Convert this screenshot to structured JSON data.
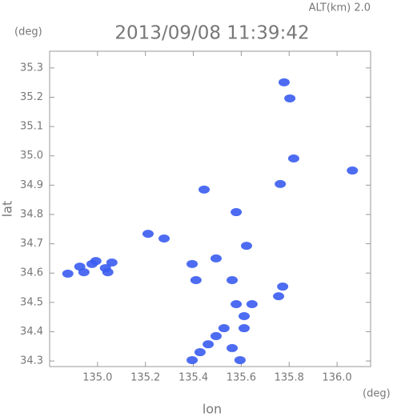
{
  "chart_data": {
    "type": "scatter",
    "title": "2013/09/08 11:39:42",
    "altitude_label": "ALT(km) 2.0",
    "x_label": "lon",
    "y_label": "lat",
    "x_unit": "(deg)",
    "y_unit": "(deg)",
    "xlim": [
      134.8,
      136.14
    ],
    "ylim": [
      34.281,
      35.357
    ],
    "xticks": [
      {
        "value": 135.0,
        "label": "135.0"
      },
      135.2,
      135.4,
      135.6,
      135.8,
      {
        "value": 136.0,
        "label": "136.0"
      }
    ],
    "yticks": [
      34.3,
      34.4,
      34.5,
      34.6,
      34.7,
      34.8,
      34.9,
      {
        "value": 35.0,
        "label": "35.0"
      },
      35.1,
      35.2,
      35.3
    ],
    "series": [
      {
        "color": "#3a5cf0",
        "x": [
          134.876,
          134.926,
          134.943,
          134.977,
          134.993,
          135.033,
          135.043,
          135.06,
          135.779,
          135.803,
          135.819,
          136.064,
          135.445,
          135.763,
          135.622,
          135.395,
          135.562,
          135.773,
          135.756,
          135.411,
          135.579,
          135.612,
          135.612,
          135.528,
          135.495,
          135.462,
          135.428,
          135.395,
          135.595,
          135.562,
          135.645,
          135.495,
          135.278,
          135.211,
          135.579
        ],
        "values": [
          34.598,
          34.622,
          34.603,
          34.631,
          34.641,
          34.617,
          34.603,
          34.636,
          35.251,
          35.196,
          34.991,
          34.95,
          34.885,
          34.904,
          34.693,
          34.631,
          34.576,
          34.554,
          34.521,
          34.576,
          34.494,
          34.453,
          34.412,
          34.412,
          34.385,
          34.357,
          34.33,
          34.303,
          34.303,
          34.344,
          34.494,
          34.65,
          34.718,
          34.734,
          34.808
        ]
      }
    ]
  }
}
